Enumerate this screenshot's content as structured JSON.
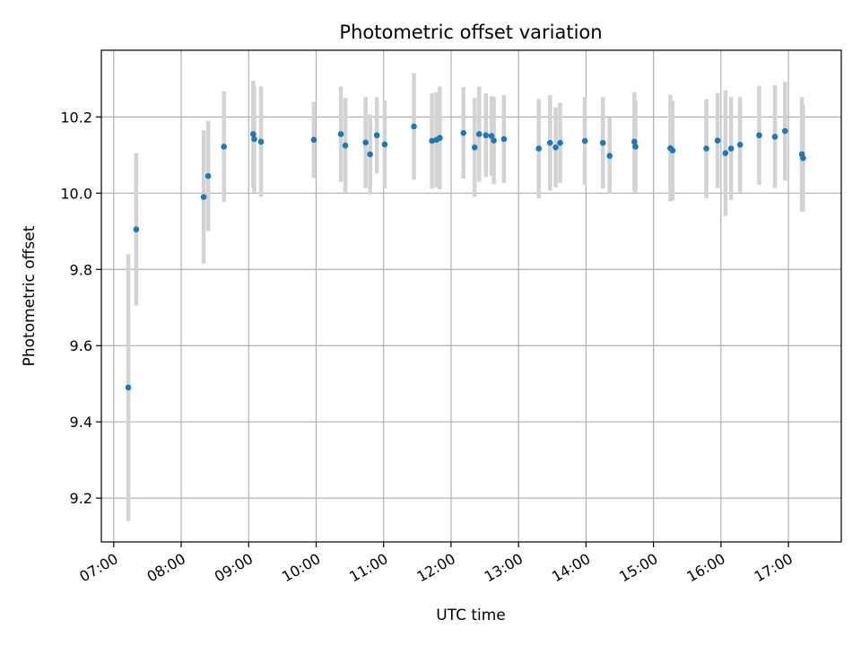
{
  "chart_data": {
    "type": "scatter",
    "title": "Photometric offset variation",
    "xlabel": "UTC time",
    "ylabel": "Photometric offset",
    "grid": true,
    "x_ticks": [
      "07:00",
      "08:00",
      "09:00",
      "10:00",
      "11:00",
      "12:00",
      "13:00",
      "14:00",
      "15:00",
      "16:00",
      "17:00"
    ],
    "y_ticks": [
      "9.2",
      "9.4",
      "9.6",
      "9.8",
      "10.0",
      "10.2"
    ],
    "xlim": [
      "06:49",
      "17:47"
    ],
    "ylim": [
      9.085,
      10.375
    ],
    "colors": {
      "point": "#1f77b4",
      "errorbar": "#d3d3d3",
      "grid": "#b0b0b0"
    },
    "series": [
      {
        "points": [
          {
            "time": "07:13",
            "y": 9.49,
            "err": 0.35
          },
          {
            "time": "07:20",
            "y": 9.905,
            "err": 0.2
          },
          {
            "time": "08:20",
            "y": 9.99,
            "err": 0.175
          },
          {
            "time": "08:24",
            "y": 10.045,
            "err": 0.145
          },
          {
            "time": "08:38",
            "y": 10.122,
            "err": 0.145
          },
          {
            "time": "09:04",
            "y": 10.155,
            "err": 0.14
          },
          {
            "time": "09:05",
            "y": 10.142,
            "err": 0.14
          },
          {
            "time": "09:11",
            "y": 10.135,
            "err": 0.145
          },
          {
            "time": "09:58",
            "y": 10.14,
            "err": 0.1
          },
          {
            "time": "10:22",
            "y": 10.155,
            "err": 0.125
          },
          {
            "time": "10:26",
            "y": 10.125,
            "err": 0.125
          },
          {
            "time": "10:44",
            "y": 10.133,
            "err": 0.12
          },
          {
            "time": "10:48",
            "y": 10.102,
            "err": 0.105
          },
          {
            "time": "10:54",
            "y": 10.152,
            "err": 0.1
          },
          {
            "time": "11:01",
            "y": 10.128,
            "err": 0.115
          },
          {
            "time": "11:27",
            "y": 10.175,
            "err": 0.14
          },
          {
            "time": "11:43",
            "y": 10.137,
            "err": 0.125
          },
          {
            "time": "11:47",
            "y": 10.14,
            "err": 0.125
          },
          {
            "time": "11:50",
            "y": 10.145,
            "err": 0.135
          },
          {
            "time": "12:11",
            "y": 10.158,
            "err": 0.12
          },
          {
            "time": "12:21",
            "y": 10.12,
            "err": 0.13
          },
          {
            "time": "12:25",
            "y": 10.155,
            "err": 0.125
          },
          {
            "time": "12:31",
            "y": 10.152,
            "err": 0.11
          },
          {
            "time": "12:36",
            "y": 10.15,
            "err": 0.105
          },
          {
            "time": "12:38",
            "y": 10.138,
            "err": 0.115
          },
          {
            "time": "12:47",
            "y": 10.142,
            "err": 0.115
          },
          {
            "time": "13:18",
            "y": 10.117,
            "err": 0.13
          },
          {
            "time": "13:28",
            "y": 10.132,
            "err": 0.125
          },
          {
            "time": "13:33",
            "y": 10.12,
            "err": 0.105
          },
          {
            "time": "13:37",
            "y": 10.132,
            "err": 0.105
          },
          {
            "time": "13:59",
            "y": 10.137,
            "err": 0.115
          },
          {
            "time": "14:15",
            "y": 10.132,
            "err": 0.12
          },
          {
            "time": "14:21",
            "y": 10.098,
            "err": 0.1
          },
          {
            "time": "14:43",
            "y": 10.135,
            "err": 0.13
          },
          {
            "time": "14:44",
            "y": 10.122,
            "err": 0.12
          },
          {
            "time": "15:15",
            "y": 10.118,
            "err": 0.14
          },
          {
            "time": "15:17",
            "y": 10.112,
            "err": 0.13
          },
          {
            "time": "15:47",
            "y": 10.117,
            "err": 0.13
          },
          {
            "time": "15:57",
            "y": 10.138,
            "err": 0.125
          },
          {
            "time": "16:04",
            "y": 10.105,
            "err": 0.165
          },
          {
            "time": "16:09",
            "y": 10.117,
            "err": 0.135
          },
          {
            "time": "16:17",
            "y": 10.127,
            "err": 0.125
          },
          {
            "time": "16:34",
            "y": 10.152,
            "err": 0.13
          },
          {
            "time": "16:48",
            "y": 10.148,
            "err": 0.135
          },
          {
            "time": "16:57",
            "y": 10.163,
            "err": 0.13
          },
          {
            "time": "17:12",
            "y": 10.102,
            "err": 0.15
          },
          {
            "time": "17:13",
            "y": 10.092,
            "err": 0.14
          }
        ]
      }
    ]
  }
}
